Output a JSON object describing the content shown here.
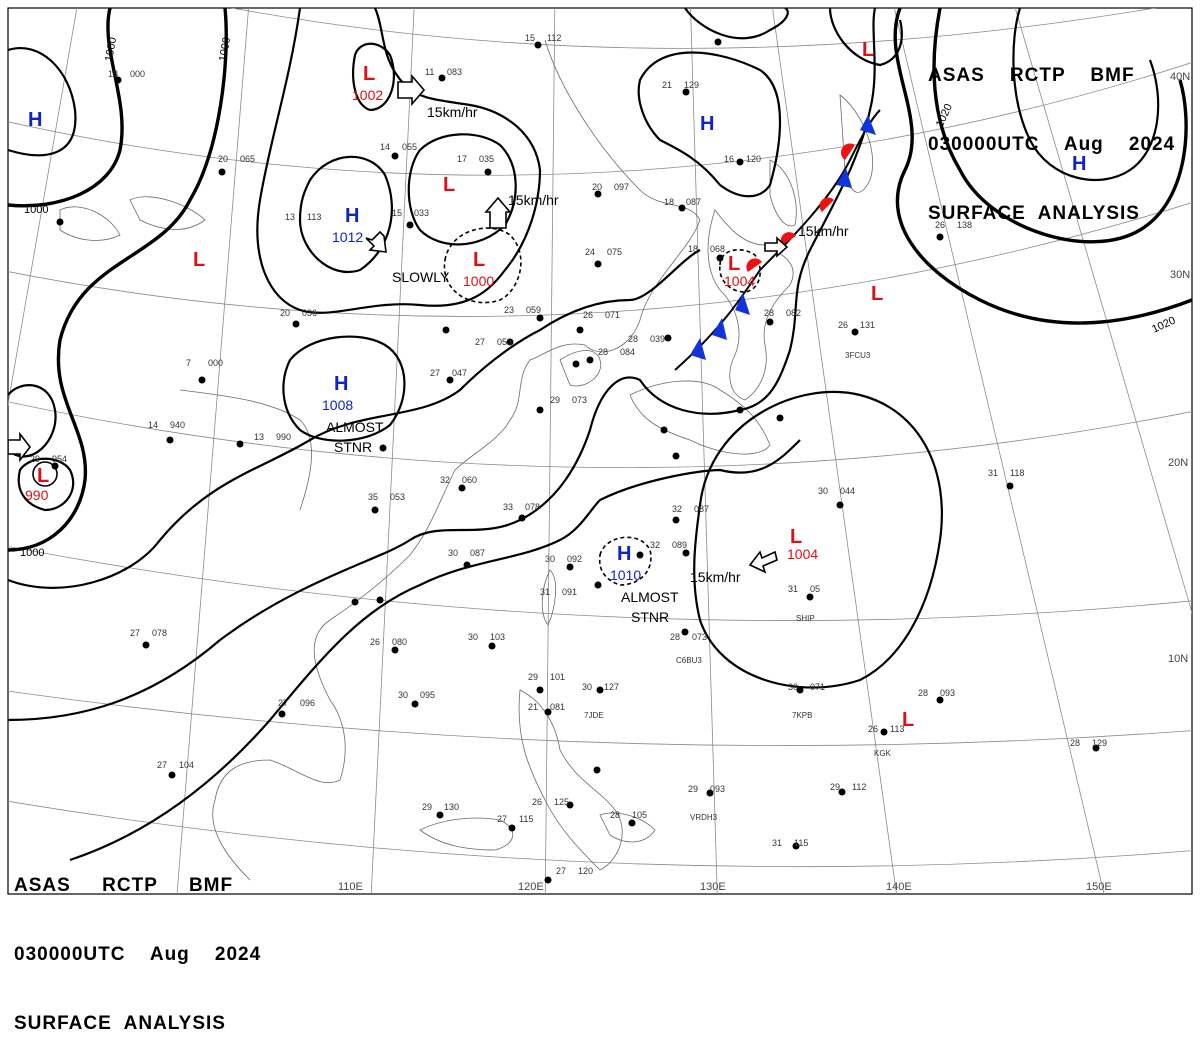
{
  "header_top": {
    "line1": "ASAS    RCTP    BMF",
    "line2": "030000UTC    Aug    2024",
    "line3": "SURFACE  ANALYSIS"
  },
  "header_bottom": {
    "line1": "ASAS     RCTP     BMF",
    "line2": "030000UTC    Aug    2024",
    "line3": "SURFACE  ANALYSIS"
  },
  "colors": {
    "low": "#dd1111",
    "high": "#1122cc",
    "cold_front": "#1133dd",
    "warm_front": "#ee1111",
    "grid": "#8a8a8a",
    "coast": "#6a6a6a"
  },
  "lat_labels": [
    "40N",
    "30N",
    "20N",
    "10N"
  ],
  "lon_labels": [
    "110E",
    "120E",
    "130E",
    "140E",
    "150E"
  ],
  "isobar_labels": [
    "1000",
    "1000",
    "1000",
    "1000",
    "1020",
    "1020"
  ],
  "pressure_centers": [
    {
      "type": "L",
      "value": "1002"
    },
    {
      "type": "L",
      "value": ""
    },
    {
      "type": "L",
      "value": "1000"
    },
    {
      "type": "L",
      "value": ""
    },
    {
      "type": "L",
      "value": "990"
    },
    {
      "type": "L",
      "value": "1004"
    },
    {
      "type": "L",
      "value": "1004"
    },
    {
      "type": "L",
      "value": ""
    },
    {
      "type": "L",
      "value": ""
    },
    {
      "type": "L",
      "value": ""
    },
    {
      "type": "H",
      "value": ""
    },
    {
      "type": "H",
      "value": "1012"
    },
    {
      "type": "H",
      "value": "1008"
    },
    {
      "type": "H",
      "value": "1010"
    },
    {
      "type": "H",
      "value": ""
    },
    {
      "type": "H",
      "value": ""
    }
  ],
  "movement_labels": [
    "15km/hr",
    "15km/hr",
    "SLOWLY",
    "15km/hr",
    "15km/hr"
  ],
  "stationary_labels": [
    {
      "line1": "ALMOST",
      "line2": "STNR"
    },
    {
      "line1": "ALMOST",
      "line2": "STNR"
    }
  ],
  "ship_labels": [
    "3FCU3",
    "SHIP",
    "C6BU3",
    "7KPB",
    "KGK",
    "7JDE",
    "VRDH3"
  ],
  "station_samples": [
    {
      "t": "20",
      "p": "097"
    },
    {
      "t": "24",
      "p": "075"
    },
    {
      "t": "26",
      "p": "071"
    },
    {
      "t": "23",
      "p": "059"
    },
    {
      "t": "27",
      "p": "053"
    },
    {
      "t": "28",
      "p": "039"
    },
    {
      "t": "14",
      "p": "055"
    },
    {
      "t": "17",
      "p": "035"
    },
    {
      "t": "15",
      "p": "033"
    },
    {
      "t": "13",
      "p": "113"
    },
    {
      "t": "20",
      "p": "036"
    },
    {
      "t": "7",
      "p": "000"
    },
    {
      "t": "14",
      "p": "940"
    },
    {
      "t": "13",
      "p": "990"
    },
    {
      "t": "27",
      "p": "047"
    },
    {
      "t": "29",
      "p": "073"
    },
    {
      "t": "32",
      "p": "060"
    },
    {
      "t": "33",
      "p": "078"
    },
    {
      "t": "35",
      "p": "053"
    },
    {
      "t": "30",
      "p": "087"
    },
    {
      "t": "30",
      "p": "092"
    },
    {
      "t": "31",
      "p": "091"
    },
    {
      "t": "32",
      "p": "089"
    },
    {
      "t": "32",
      "p": "087"
    },
    {
      "t": "30",
      "p": "044"
    },
    {
      "t": "31",
      "p": "05"
    },
    {
      "t": "28",
      "p": "073"
    },
    {
      "t": "30",
      "p": "071"
    },
    {
      "t": "28",
      "p": "093"
    },
    {
      "t": "26",
      "p": "113"
    },
    {
      "t": "28",
      "p": "129"
    },
    {
      "t": "29",
      "p": "112"
    },
    {
      "t": "31",
      "p": "115"
    },
    {
      "t": "29",
      "p": "093"
    },
    {
      "t": "30",
      "p": "127"
    },
    {
      "t": "29",
      "p": "101"
    },
    {
      "t": "21",
      "p": "081"
    },
    {
      "t": "30",
      "p": "103"
    },
    {
      "t": "30",
      "p": "095"
    },
    {
      "t": "27",
      "p": "096"
    },
    {
      "t": "27",
      "p": "104"
    },
    {
      "t": "27",
      "p": "078"
    },
    {
      "t": "26",
      "p": "080"
    },
    {
      "t": "29",
      "p": "130"
    },
    {
      "t": "27",
      "p": "115"
    },
    {
      "t": "26",
      "p": "125"
    },
    {
      "t": "28",
      "p": "105"
    },
    {
      "t": "27",
      "p": "120"
    },
    {
      "t": "26",
      "p": "131"
    },
    {
      "t": "26",
      "p": "138"
    },
    {
      "t": "21",
      "p": "129"
    },
    {
      "t": "16",
      "p": "120"
    },
    {
      "t": "18",
      "p": "087"
    },
    {
      "t": "18",
      "p": "068"
    },
    {
      "t": "31",
      "p": "118"
    },
    {
      "t": "11",
      "p": "083"
    },
    {
      "t": "15",
      "p": "112"
    },
    {
      "t": "18",
      "p": "000"
    },
    {
      "t": "29",
      "p": "954"
    },
    {
      "t": "20",
      "p": "065"
    },
    {
      "t": "28",
      "p": "082"
    },
    {
      "t": "28",
      "p": "084"
    }
  ]
}
